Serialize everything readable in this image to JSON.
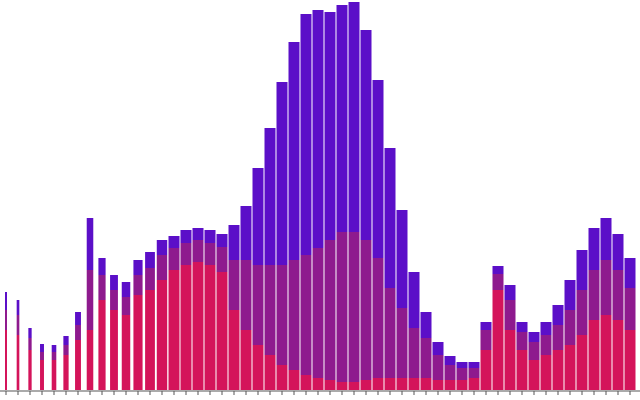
{
  "chart_data": {
    "type": "stacked_bar",
    "categories": [
      null,
      null,
      null,
      null,
      null,
      null,
      null,
      null,
      null,
      null,
      null,
      null,
      null,
      null,
      null,
      null,
      null,
      null,
      null,
      null,
      null,
      null,
      null,
      null,
      null,
      null,
      null,
      null,
      null,
      null,
      null,
      null,
      null,
      null,
      null,
      null,
      null,
      null,
      null,
      null,
      null,
      null,
      null,
      null,
      null,
      null,
      null,
      null,
      null,
      null,
      null,
      null,
      null
    ],
    "series": [
      {
        "color": "#d4145a",
        "values": [
          60,
          55,
          40,
          30,
          30,
          35,
          50,
          60,
          90,
          80,
          75,
          95,
          100,
          110,
          120,
          125,
          128,
          125,
          118,
          80,
          60,
          45,
          35,
          25,
          20,
          15,
          12,
          10,
          8,
          8,
          10,
          12,
          12,
          12,
          12,
          12,
          10,
          10,
          10,
          12,
          40,
          100,
          60,
          40,
          30,
          35,
          40,
          45,
          55,
          70,
          75,
          70,
          60
        ]
      },
      {
        "color": "#8e1a8e",
        "values": [
          20,
          20,
          12,
          8,
          8,
          10,
          15,
          60,
          25,
          20,
          18,
          20,
          22,
          25,
          22,
          22,
          22,
          22,
          25,
          50,
          70,
          80,
          90,
          100,
          110,
          120,
          130,
          140,
          150,
          150,
          140,
          120,
          90,
          70,
          50,
          40,
          25,
          15,
          12,
          10,
          20,
          16,
          30,
          18,
          18,
          20,
          25,
          35,
          45,
          50,
          55,
          50,
          42
        ]
      },
      {
        "color": "#5b0fc8",
        "values": [
          18,
          15,
          10,
          8,
          7,
          9,
          13,
          52,
          17,
          15,
          15,
          15,
          16,
          15,
          12,
          13,
          12,
          13,
          13,
          35,
          54,
          97,
          137,
          183,
          218,
          241,
          238,
          228,
          227,
          230,
          210,
          178,
          140,
          98,
          56,
          26,
          13,
          9,
          6,
          6,
          8,
          8,
          15,
          10,
          10,
          13,
          20,
          30,
          40,
          42,
          42,
          36,
          30
        ]
      }
    ]
  }
}
